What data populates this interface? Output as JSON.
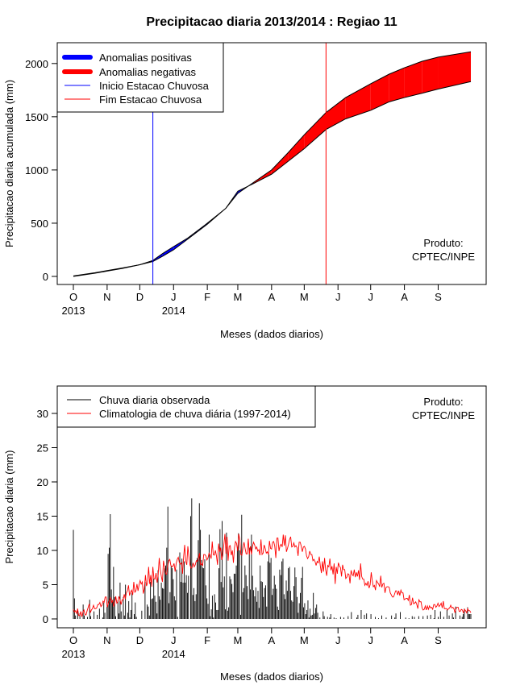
{
  "colors": {
    "positive_anomaly": "#0000ff",
    "negative_anomaly": "#ff0000",
    "observed_rain": "#000000",
    "climatology": "#ff0000",
    "season_start": "#0000ff",
    "season_end": "#ff0000"
  },
  "chart_data": [
    {
      "type": "area",
      "title": "Precipitacao diaria 2013/2014 : Regiao 11",
      "xlabel": "Meses (dados diarios)",
      "ylabel": "Precipitacao diaria acumulada (mm)",
      "xlim": [
        0,
        365
      ],
      "ylim": [
        0,
        2200
      ],
      "yticks": [
        0,
        500,
        1000,
        1500,
        2000
      ],
      "month_ticks": [
        {
          "label": "O",
          "day": 0
        },
        {
          "label": "N",
          "day": 31
        },
        {
          "label": "D",
          "day": 61
        },
        {
          "label": "J",
          "day": 92
        },
        {
          "label": "F",
          "day": 123
        },
        {
          "label": "M",
          "day": 151
        },
        {
          "label": "A",
          "day": 182
        },
        {
          "label": "M",
          "day": 212
        },
        {
          "label": "J",
          "day": 243
        },
        {
          "label": "J",
          "day": 273
        },
        {
          "label": "A",
          "day": 304
        },
        {
          "label": "S",
          "day": 335
        }
      ],
      "year_labels": [
        {
          "label": "2013",
          "day": 0
        },
        {
          "label": "2014",
          "day": 92
        }
      ],
      "season_start_day": 73,
      "season_end_day": 232,
      "legend": [
        "Anomalias positivas",
        "Anomalias negativas",
        "Inicio Estacao Chuvosa",
        "Fim Estacao Chuvosa"
      ],
      "credit": [
        "Produto:",
        "CPTEC/INPE"
      ],
      "series": [
        {
          "name": "Observed accumulated",
          "x": [
            0,
            10,
            20,
            31,
            45,
            61,
            73,
            82,
            92,
            105,
            123,
            140,
            151,
            165,
            182,
            197,
            212,
            232,
            250,
            273,
            290,
            304,
            320,
            335,
            365
          ],
          "values": [
            0,
            15,
            30,
            50,
            75,
            110,
            150,
            215,
            280,
            360,
            500,
            640,
            800,
            870,
            960,
            1080,
            1200,
            1380,
            1480,
            1560,
            1640,
            1680,
            1720,
            1760,
            1830
          ]
        },
        {
          "name": "Climatological accumulated",
          "x": [
            0,
            10,
            20,
            31,
            45,
            61,
            73,
            82,
            92,
            105,
            123,
            140,
            151,
            165,
            182,
            197,
            212,
            232,
            250,
            273,
            290,
            304,
            320,
            335,
            365
          ],
          "values": [
            5,
            20,
            35,
            55,
            80,
            110,
            140,
            190,
            250,
            350,
            490,
            640,
            780,
            880,
            1000,
            1160,
            1330,
            1540,
            1680,
            1810,
            1900,
            1960,
            2020,
            2060,
            2110
          ]
        }
      ]
    },
    {
      "type": "bar",
      "xlabel": "Meses (dados diarios)",
      "ylabel": "Precipitacao diaria (mm)",
      "xlim": [
        0,
        365
      ],
      "ylim": [
        0,
        33
      ],
      "yticks": [
        0,
        5,
        10,
        15,
        20,
        25,
        30
      ],
      "legend": [
        "Chuva diaria observada",
        "Climatologia de chuva diária (1997-2014)"
      ],
      "credit": [
        "Produto:",
        "CPTEC/INPE"
      ],
      "series": [
        {
          "name": "Chuva diaria observada",
          "values": [
            13,
            3,
            0.5,
            0,
            1.2,
            0,
            0.8,
            0,
            0,
            2.1,
            0.5,
            0,
            0,
            0.3,
            0,
            2.8,
            0.4,
            0,
            0,
            1.1,
            0,
            0,
            0.6,
            0,
            1.5,
            0,
            0,
            0.2,
            2.4,
            0.9,
            0,
            1.8,
            9.5,
            10.4,
            15.3,
            4.3,
            2.5,
            7.6,
            3.2,
            0.4,
            0,
            2.7,
            0.8,
            5.3,
            1.1,
            0,
            3.2,
            0.5,
            5,
            0,
            0.9,
            2.6,
            0.2,
            1.3,
            3.8,
            0,
            0.7,
            2.4,
            0.3,
            0,
            0,
            0,
            0,
            1.2,
            0,
            0,
            5.4,
            0,
            2.1,
            1.8,
            0.5,
            5.4,
            2.9,
            3,
            5.9,
            3.4,
            2.5,
            0.8,
            7.1,
            3.3,
            2.8,
            5.3,
            4.5,
            4.4,
            7.4,
            7.8,
            10.4,
            16.4,
            2.3,
            3.9,
            7.7,
            7.4,
            5.8,
            3.3,
            2.7,
            7.2,
            0.3,
            0,
            9.7,
            5.4,
            8.8,
            5.3,
            8.4,
            5.3,
            6.4,
            3.8,
            6.3,
            0,
            15,
            17.6,
            3.5,
            4.5,
            2.6,
            3.6,
            8.9,
            11.5,
            16.9,
            13,
            8.6,
            7.5,
            7.4,
            8.7,
            4.9,
            3,
            2.2,
            12.3,
            0.4,
            1.4,
            3.4,
            0.2,
            3.6,
            2.4,
            1.3,
            1.3,
            7.4,
            13.1,
            5.4,
            14.3,
            4.6,
            6.2,
            1.4,
            12.6,
            1.2,
            1.7,
            6.2,
            5.8,
            5.1,
            3.9,
            6.6,
            6.6,
            7.8,
            10.2,
            12.5,
            10,
            0.6,
            15.2,
            3.9,
            4.5,
            7.8,
            6.4,
            4.8,
            2.9,
            10.4,
            4.3,
            12.3,
            6.3,
            4.2,
            3.3,
            4.6,
            2.5,
            4.1,
            1.6,
            7.8,
            5.5,
            5.4,
            3.2,
            4.5,
            4.9,
            1.8,
            8.4,
            9.4,
            8.2,
            8.9,
            3.5,
            4.4,
            6.3,
            5,
            4.4,
            1.8,
            1.3,
            7.2,
            6.4,
            8.4,
            8.8,
            3.6,
            2.9,
            5.6,
            4.1,
            7.4,
            7.6,
            4.1,
            2.7,
            2.5,
            4.8,
            7.5,
            6.1,
            3.2,
            0.9,
            2.3,
            3.8,
            6,
            7.6,
            1.7,
            2.3,
            0.7,
            1.3,
            2.7,
            0.2,
            1.5,
            0.5,
            0.6,
            3.8,
            0.8,
            1.6,
            2.1,
            0.9,
            0,
            0.2,
            0,
            0,
            1.1,
            0.4,
            0,
            0,
            0.3,
            0,
            0.2,
            0.7,
            0,
            0,
            0.2,
            0,
            0.1,
            0,
            0,
            0,
            0.3,
            0,
            0,
            0.2,
            0,
            0,
            0,
            0.4,
            0,
            0,
            1,
            0,
            0,
            0,
            0,
            0.2,
            0.6,
            0,
            0,
            1.3,
            0,
            0,
            0.6,
            0,
            0.8,
            0,
            0,
            0,
            0.7,
            0,
            0,
            0,
            0.3,
            0,
            0,
            0.1,
            0,
            0,
            0.5,
            0,
            0,
            0,
            0.2,
            0,
            0,
            0,
            0,
            0.5,
            0,
            0,
            0.2,
            0.8,
            0,
            0,
            0,
            1,
            0,
            0,
            0,
            0,
            0.2,
            0,
            0,
            0.1,
            0,
            0,
            0.4,
            0,
            0.3,
            0,
            0,
            0,
            0.4,
            0,
            0,
            0,
            0.4,
            0,
            0,
            0,
            0.5,
            0,
            0,
            0.6,
            0,
            0,
            0.1,
            1.3,
            0,
            0,
            0.3,
            0,
            1.1,
            0,
            0,
            0.3,
            0,
            0,
            1.3,
            0,
            0.5,
            0,
            0,
            0.8,
            0.2,
            0,
            1.8,
            0,
            0,
            0,
            0.5,
            0,
            0.3,
            0.7,
            1.5,
            0,
            0,
            1.7,
            0.7,
            0.7,
            0.7
          ]
        },
        {
          "name": "Climatologia de chuva diária (1997-2014)",
          "values": [
            1.4,
            1,
            1.2,
            0.8,
            1.5,
            0.5,
            0.5,
            1.1,
            0.3,
            1,
            1.3,
            0.6,
            0.6,
            1.2,
            1.7,
            2.2,
            0.9,
            1.3,
            1.5,
            2,
            1.5,
            1.5,
            1.6,
            2.1,
            2.1,
            2.4,
            1.8,
            2,
            2.6,
            2.4,
            3.2,
            3.2,
            1.7,
            2.3,
            2.7,
            3.1,
            2.4,
            2.7,
            1.8,
            2.3,
            3.3,
            2.3,
            2.5,
            3.3,
            2.8,
            2.1,
            2.8,
            2.8,
            3.6,
            2.9,
            3.8,
            4.1,
            4.9,
            3.4,
            3.9,
            4.2,
            3.5,
            5.4,
            3.9,
            4.1,
            5.1,
            4.1,
            5,
            5.6,
            5.1,
            5.4,
            3.7,
            4.4,
            6.4,
            4.8,
            5.3,
            7.6,
            5.1,
            6.4,
            4.7,
            7.6,
            5.9,
            5.8,
            6.7,
            5.3,
            6.4,
            8.9,
            7.2,
            6.2,
            5.4,
            8.5,
            7.6,
            6.6,
            6.5,
            7.7,
            8.5,
            8.7,
            7.8,
            7.6,
            7.7,
            8.1,
            6.9,
            8.1,
            8.7,
            9,
            8.2,
            8,
            8.2,
            6.6,
            9,
            10.8,
            8.4,
            7.9,
            10.6,
            9.1,
            7.9,
            7.4,
            7.5,
            8.2,
            7.6,
            7.9,
            8.5,
            8.4,
            8.8,
            9.6,
            7.9,
            8.1,
            7.8,
            9.4,
            9.4,
            9.2,
            8.6,
            8.9,
            9.6,
            9.3,
            8.8,
            11.3,
            9.4,
            9.3,
            10,
            9.2,
            7.9,
            11,
            9.8,
            10.4,
            8.6,
            9.3,
            10.9,
            12.4,
            9.5,
            12,
            8.5,
            10.6,
            10.7,
            9.3,
            10,
            8.2,
            10.4,
            11.3,
            11,
            9.9,
            12.4,
            11.6,
            9.4,
            9.3,
            10.4,
            11.2,
            10.3,
            9.5,
            9.5,
            11.7,
            9.4,
            10.6,
            9.4,
            10.6,
            11.2,
            10.8,
            10.2,
            10.5,
            9.9,
            10.1,
            9.3,
            11.6,
            9.4,
            9.6,
            10.8,
            10.3,
            9.6,
            9.8,
            9.4,
            11.4,
            10.3,
            10.2,
            11.2,
            11.3,
            10.6,
            8.9,
            11.8,
            11.8,
            9.9,
            10.7,
            10.9,
            10.5,
            12.3,
            10.7,
            12.2,
            9.8,
            10.3,
            10.9,
            11.6,
            12,
            10.5,
            10.6,
            11.1,
            10.5,
            10.7,
            10.4,
            9.2,
            11.2,
            11.2,
            10.6,
            9.8,
            10.5,
            10.6,
            10.2,
            9.2,
            8.8,
            9.1,
            9.9,
            9.4,
            9.4,
            8.5,
            8.7,
            8.4,
            7.8,
            8.4,
            8.2,
            9.1,
            7.7,
            6.7,
            8.4,
            6.9,
            8.9,
            7.2,
            6.3,
            7.8,
            7.6,
            8.8,
            7.1,
            7.7,
            6.5,
            8.1,
            5.1,
            7.6,
            6.6,
            8.2,
            7.7,
            7.5,
            6.2,
            7.9,
            7.2,
            7.2,
            5.9,
            6.1,
            6.6,
            6.5,
            5.2,
            7.1,
            6.5,
            6.3,
            7.2,
            6.1,
            6.8,
            6.2,
            7.1,
            5.7,
            8.1,
            6.2,
            5.8,
            5.8,
            4.9,
            5.2,
            4.9,
            5.5,
            4.5,
            5,
            6.8,
            5.6,
            4.7,
            4.9,
            4.2,
            5.6,
            5.3,
            5.1,
            4.7,
            6.3,
            4.6,
            5.1,
            5.2,
            3.8,
            4.6,
            4.7,
            4.7,
            4.6,
            3.8,
            3.5,
            3.2,
            3.2,
            3.6,
            4.1,
            4.1,
            3.5,
            4.1,
            3.4,
            4.2,
            3.8,
            3.8,
            2.8,
            2.9,
            3,
            3,
            2.7,
            3.5,
            2,
            2.1,
            3.1,
            2.2,
            2.3,
            2.5,
            2.1,
            1.5,
            2.8,
            2.5,
            2.5,
            1.6,
            1.3,
            1.4,
            1.9,
            1.3,
            1.9,
            1.4,
            1.9,
            1.6,
            1.7,
            1.4,
            2.1,
            2.1,
            1.7,
            1.9,
            2.3,
            1.8,
            2,
            2.3,
            1.6,
            2.6,
            1.5,
            1.5,
            1.5,
            1.3,
            1.5,
            1.6,
            2,
            1.6,
            1.7,
            1.5,
            0.9,
            1.5,
            1.7,
            1.7,
            1.1,
            1.1,
            1.4,
            1.3,
            0.9,
            1.4,
            1.2,
            0.9,
            1.5,
            1.2,
            1.2,
            0.9
          ]
        }
      ]
    }
  ]
}
